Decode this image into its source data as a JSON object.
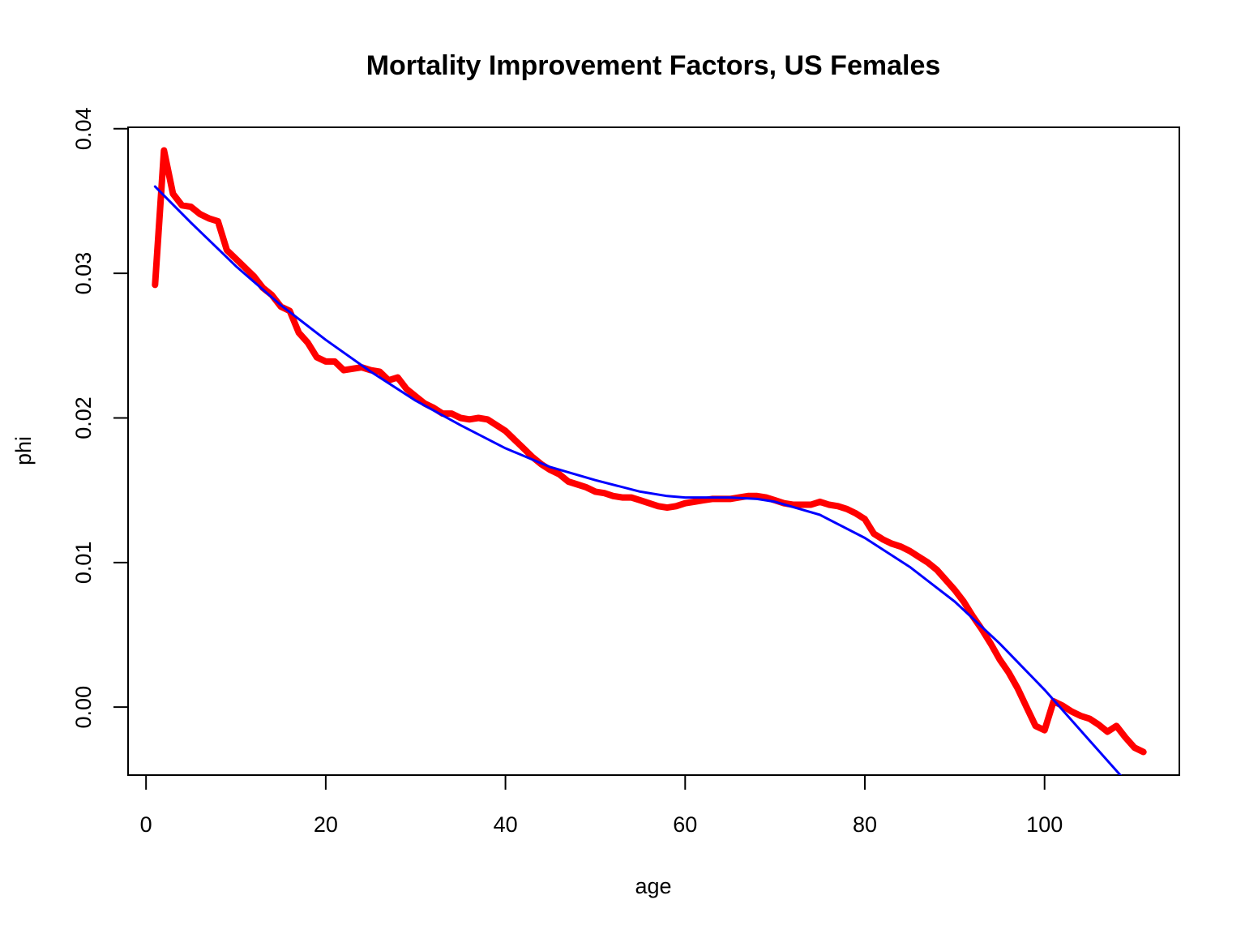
{
  "chart_data": {
    "type": "line",
    "title": "Mortality Improvement Factors, US Females",
    "xlabel": "age",
    "ylabel": "phi",
    "xlim": [
      -2,
      115
    ],
    "ylim": [
      -0.0047,
      0.0401
    ],
    "x_ticks": [
      0,
      20,
      40,
      60,
      80,
      100
    ],
    "x_tick_labels": [
      "0",
      "20",
      "40",
      "60",
      "80",
      "100"
    ],
    "y_ticks": [
      0.0,
      0.01,
      0.02,
      0.03,
      0.04
    ],
    "y_tick_labels": [
      "0.00",
      "0.01",
      "0.02",
      "0.03",
      "0.04"
    ],
    "grid": false,
    "legend": "none",
    "series": [
      {
        "color": "#ff0000",
        "line_style": "thick",
        "x": [
          1,
          2,
          3,
          4,
          5,
          6,
          7,
          8,
          9,
          10,
          11,
          12,
          13,
          14,
          15,
          16,
          17,
          18,
          19,
          20,
          21,
          22,
          23,
          24,
          25,
          26,
          27,
          28,
          29,
          30,
          31,
          32,
          33,
          34,
          35,
          36,
          37,
          38,
          39,
          40,
          41,
          42,
          43,
          44,
          45,
          46,
          47,
          48,
          49,
          50,
          51,
          52,
          53,
          54,
          55,
          56,
          57,
          58,
          59,
          60,
          61,
          62,
          63,
          64,
          65,
          66,
          67,
          68,
          69,
          70,
          71,
          72,
          73,
          74,
          75,
          76,
          77,
          78,
          79,
          80,
          81,
          82,
          83,
          84,
          85,
          86,
          87,
          88,
          89,
          90,
          91,
          92,
          93,
          94,
          95,
          96,
          97,
          98,
          99,
          100,
          101,
          102,
          103,
          104,
          105,
          106,
          107,
          108,
          109,
          110,
          111
        ],
        "values": [
          0.0292,
          0.0385,
          0.0355,
          0.0347,
          0.0346,
          0.0341,
          0.0338,
          0.0336,
          0.0316,
          0.031,
          0.0304,
          0.0298,
          0.029,
          0.0285,
          0.0277,
          0.0274,
          0.0259,
          0.0252,
          0.0242,
          0.0239,
          0.0239,
          0.0233,
          0.0234,
          0.0235,
          0.0233,
          0.0232,
          0.0226,
          0.0228,
          0.022,
          0.0215,
          0.021,
          0.0207,
          0.0203,
          0.0203,
          0.02,
          0.0199,
          0.02,
          0.0199,
          0.0195,
          0.0191,
          0.0185,
          0.0179,
          0.0173,
          0.0168,
          0.0164,
          0.0161,
          0.0156,
          0.0154,
          0.0152,
          0.0149,
          0.0148,
          0.0146,
          0.0145,
          0.0145,
          0.0143,
          0.0141,
          0.0139,
          0.0138,
          0.0139,
          0.0141,
          0.0142,
          0.0143,
          0.0144,
          0.0144,
          0.0144,
          0.0145,
          0.0146,
          0.0146,
          0.0145,
          0.0143,
          0.0141,
          0.014,
          0.014,
          0.014,
          0.0142,
          0.014,
          0.0139,
          0.0137,
          0.0134,
          0.013,
          0.012,
          0.0116,
          0.0113,
          0.0111,
          0.0108,
          0.0104,
          0.01,
          0.0095,
          0.0088,
          0.0081,
          0.0073,
          0.0063,
          0.0054,
          0.0044,
          0.0033,
          0.0024,
          0.0013,
          0.0,
          -0.0013,
          -0.0016,
          0.0004,
          0.0001,
          -0.0003,
          -0.0006,
          -0.0008,
          -0.0012,
          -0.0017,
          -0.0013,
          -0.0021,
          -0.0028,
          -0.0031
        ]
      },
      {
        "color": "#0000ff",
        "line_style": "thin",
        "x": [
          1,
          5,
          10,
          15,
          20,
          25,
          30,
          35,
          40,
          45,
          50,
          55,
          58,
          60,
          65,
          68,
          70,
          75,
          80,
          85,
          90,
          95,
          100,
          105,
          110
        ],
        "values": [
          0.036,
          0.0335,
          0.0305,
          0.0278,
          0.0254,
          0.0232,
          0.0212,
          0.0195,
          0.0179,
          0.0166,
          0.0157,
          0.0149,
          0.0146,
          0.0145,
          0.0145,
          0.0144,
          0.0142,
          0.0133,
          0.0117,
          0.0097,
          0.0073,
          0.0044,
          0.0012,
          -0.0023,
          -0.0058
        ]
      }
    ]
  }
}
